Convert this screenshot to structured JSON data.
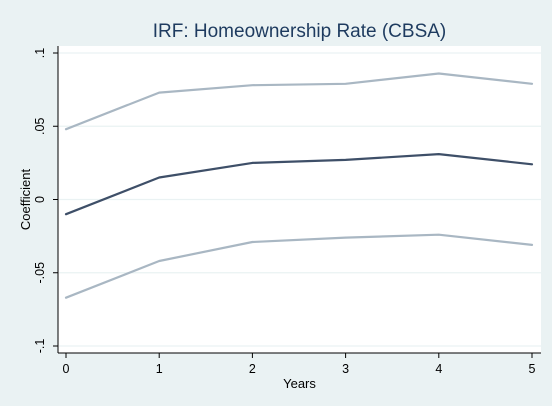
{
  "chart_data": {
    "type": "line",
    "title": "IRF: Homeownership Rate (CBSA)",
    "xlabel": "Years",
    "ylabel": "Coefficient",
    "x": [
      0,
      1,
      2,
      3,
      4,
      5
    ],
    "x_ticks": [
      "0",
      "1",
      "2",
      "3",
      "4",
      "5"
    ],
    "xlim": [
      0,
      5
    ],
    "y_ticks": [
      {
        "value": -0.1,
        "label": "-.1"
      },
      {
        "value": -0.05,
        "label": "-.05"
      },
      {
        "value": 0,
        "label": "0"
      },
      {
        "value": 0.05,
        "label": ".05"
      },
      {
        "value": 0.1,
        "label": ".1"
      }
    ],
    "ylim": [
      -0.1,
      0.1
    ],
    "grid": true,
    "legend": "none",
    "series": [
      {
        "values": [
          0.048,
          0.073,
          0.078,
          0.079,
          0.086,
          0.079
        ],
        "color": "#a9b7c3",
        "width": 2.2
      },
      {
        "values": [
          -0.01,
          0.015,
          0.025,
          0.027,
          0.031,
          0.024
        ],
        "color": "#3e4f68",
        "width": 2.2
      },
      {
        "values": [
          -0.067,
          -0.042,
          -0.029,
          -0.026,
          -0.024,
          -0.031
        ],
        "color": "#a9b7c3",
        "width": 2.2
      }
    ],
    "colors": {
      "background": "#eaf2f3",
      "plot_bg": "#ffffff",
      "grid": "#eaf2f3",
      "title": "#1e3b5f"
    }
  }
}
